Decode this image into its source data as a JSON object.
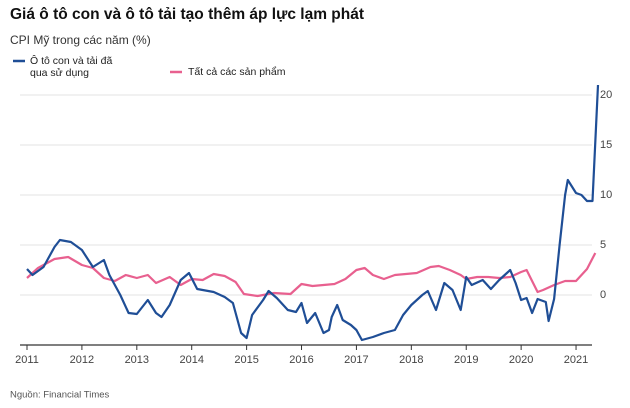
{
  "chart_data": {
    "type": "line",
    "title": "Giá ô tô con và ô tô tải tạo thêm áp lực lạm phát",
    "subtitle": "CPI Mỹ trong các năm (%)",
    "source": "Nguồn: Financial Times",
    "xlim": [
      2011,
      2021.4
    ],
    "xticks": [
      2011,
      2012,
      2013,
      2014,
      2015,
      2016,
      2017,
      2018,
      2019,
      2020,
      2021
    ],
    "ylim": [
      -5,
      21
    ],
    "yticks": [
      0,
      5,
      10,
      15,
      20
    ],
    "grid": true,
    "series": [
      {
        "name": "Ô tô con và tải đã qua sử dụng",
        "color": "#1f4e96",
        "x": [
          2011.0,
          2011.1,
          2011.3,
          2011.5,
          2011.6,
          2011.8,
          2012.0,
          2012.2,
          2012.4,
          2012.5,
          2012.7,
          2012.85,
          2013.0,
          2013.2,
          2013.35,
          2013.45,
          2013.6,
          2013.8,
          2013.95,
          2014.1,
          2014.4,
          2014.6,
          2014.75,
          2014.9,
          2015.0,
          2015.1,
          2015.3,
          2015.4,
          2015.55,
          2015.75,
          2015.9,
          2016.0,
          2016.1,
          2016.25,
          2016.4,
          2016.5,
          2016.55,
          2016.65,
          2016.75,
          2016.9,
          2017.0,
          2017.1,
          2017.3,
          2017.5,
          2017.7,
          2017.85,
          2018.0,
          2018.2,
          2018.3,
          2018.45,
          2018.6,
          2018.75,
          2018.9,
          2019.0,
          2019.1,
          2019.3,
          2019.45,
          2019.6,
          2019.7,
          2019.8,
          2019.9,
          2020.0,
          2020.1,
          2020.2,
          2020.3,
          2020.45,
          2020.5,
          2020.6,
          2020.7,
          2020.8,
          2020.85,
          2021.0,
          2021.1,
          2021.2,
          2021.3,
          2021.4
        ],
        "values": [
          2.6,
          2.0,
          2.8,
          4.8,
          5.5,
          5.3,
          4.5,
          2.8,
          3.5,
          2.0,
          0,
          -1.8,
          -1.9,
          -0.5,
          -1.8,
          -2.2,
          -1.0,
          1.5,
          2.2,
          0.6,
          0.3,
          -0.2,
          -0.8,
          -3.8,
          -4.3,
          -2.0,
          -0.5,
          0.4,
          -0.3,
          -1.5,
          -1.7,
          -0.8,
          -2.8,
          -1.8,
          -3.8,
          -3.5,
          -2.2,
          -1.0,
          -2.5,
          -3.0,
          -3.5,
          -4.5,
          -4.2,
          -3.8,
          -3.5,
          -2.0,
          -1.0,
          0,
          0.4,
          -1.5,
          1.2,
          0.5,
          -1.5,
          1.8,
          1.0,
          1.5,
          0.6,
          1.5,
          2.0,
          2.5,
          1.2,
          -0.5,
          -0.3,
          -1.8,
          -0.4,
          -0.7,
          -2.6,
          -0.4,
          5.0,
          10.0,
          11.5,
          10.2,
          10.0,
          9.4,
          9.4,
          21.0
        ]
      },
      {
        "name": "Tất cả các sản phẩm",
        "color": "#e8608f",
        "x": [
          2011.0,
          2011.2,
          2011.5,
          2011.75,
          2012.0,
          2012.2,
          2012.4,
          2012.6,
          2012.8,
          2013.0,
          2013.2,
          2013.35,
          2013.6,
          2013.8,
          2014.0,
          2014.2,
          2014.4,
          2014.6,
          2014.8,
          2014.95,
          2015.2,
          2015.5,
          2015.8,
          2016.0,
          2016.2,
          2016.4,
          2016.6,
          2016.8,
          2017.0,
          2017.15,
          2017.3,
          2017.5,
          2017.7,
          2017.9,
          2018.1,
          2018.35,
          2018.5,
          2018.7,
          2018.9,
          2019.0,
          2019.2,
          2019.4,
          2019.6,
          2019.8,
          2020.0,
          2020.1,
          2020.3,
          2020.4,
          2020.6,
          2020.8,
          2021.0,
          2021.2,
          2021.35
        ],
        "values": [
          1.7,
          2.7,
          3.6,
          3.8,
          3.0,
          2.7,
          1.7,
          1.4,
          2.0,
          1.7,
          2.0,
          1.2,
          1.8,
          1.0,
          1.6,
          1.5,
          2.1,
          1.9,
          1.3,
          0.1,
          -0.1,
          0.2,
          0.1,
          1.1,
          0.9,
          1.0,
          1.1,
          1.6,
          2.5,
          2.7,
          2.0,
          1.6,
          2.0,
          2.1,
          2.2,
          2.8,
          2.9,
          2.5,
          2.0,
          1.6,
          1.8,
          1.8,
          1.7,
          1.8,
          2.3,
          2.5,
          0.3,
          0.5,
          1.0,
          1.4,
          1.4,
          2.6,
          4.2
        ]
      }
    ]
  }
}
